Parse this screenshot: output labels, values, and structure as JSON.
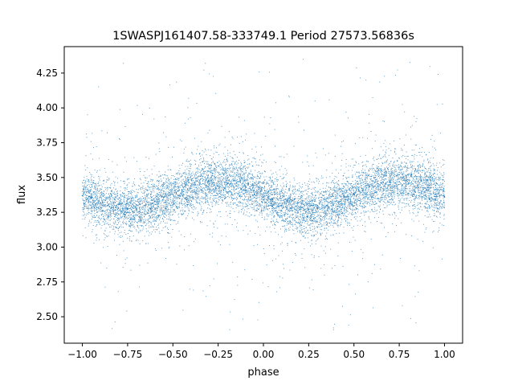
{
  "chart_data": {
    "type": "scatter",
    "title": "1SWASPJ161407.58-333749.1 Period 27573.56836s",
    "xlabel": "phase",
    "ylabel": "flux",
    "xlim": [
      -1.1,
      1.1
    ],
    "ylim": [
      2.31,
      4.44
    ],
    "x_ticks": [
      -1.0,
      -0.75,
      -0.5,
      -0.25,
      0.0,
      0.25,
      0.5,
      0.75,
      1.0
    ],
    "x_tick_labels": [
      "−1.00",
      "−0.75",
      "−0.50",
      "−0.25",
      "0.00",
      "0.25",
      "0.50",
      "0.75",
      "1.00"
    ],
    "y_ticks": [
      2.5,
      2.75,
      3.0,
      3.25,
      3.5,
      3.75,
      4.0,
      4.25
    ],
    "y_tick_labels": [
      "2.50",
      "2.75",
      "3.00",
      "3.25",
      "3.50",
      "3.75",
      "4.00",
      "4.25"
    ],
    "grid": false,
    "point_color": "#1f77b4",
    "series": [
      {
        "phase_range": [
          -1.0,
          1.0
        ],
        "model": {
          "mean_flux": 3.37,
          "amplitude": 0.1,
          "max_phase": [
            -0.25,
            0.75
          ],
          "min_phase": [
            -0.75,
            0.25
          ],
          "scatter_sigma": 0.09,
          "outlier_range": [
            2.4,
            4.35
          ]
        },
        "points": [
          [
            -1.0,
            3.37
          ],
          [
            -0.95,
            3.35
          ],
          [
            -0.9,
            3.32
          ],
          [
            -0.85,
            3.29
          ],
          [
            -0.8,
            3.28
          ],
          [
            -0.75,
            3.27
          ],
          [
            -0.7,
            3.28
          ],
          [
            -0.65,
            3.3
          ],
          [
            -0.6,
            3.33
          ],
          [
            -0.55,
            3.36
          ],
          [
            -0.5,
            3.38
          ],
          [
            -0.45,
            3.41
          ],
          [
            -0.4,
            3.44
          ],
          [
            -0.35,
            3.46
          ],
          [
            -0.3,
            3.47
          ],
          [
            -0.25,
            3.47
          ],
          [
            -0.2,
            3.46
          ],
          [
            -0.15,
            3.44
          ],
          [
            -0.1,
            3.41
          ],
          [
            -0.05,
            3.38
          ],
          [
            0.0,
            3.36
          ],
          [
            0.05,
            3.33
          ],
          [
            0.1,
            3.3
          ],
          [
            0.15,
            3.28
          ],
          [
            0.2,
            3.27
          ],
          [
            0.25,
            3.27
          ],
          [
            0.3,
            3.28
          ],
          [
            0.35,
            3.3
          ],
          [
            0.4,
            3.33
          ],
          [
            0.45,
            3.36
          ],
          [
            0.5,
            3.38
          ],
          [
            0.55,
            3.41
          ],
          [
            0.6,
            3.44
          ],
          [
            0.65,
            3.46
          ],
          [
            0.7,
            3.47
          ],
          [
            0.75,
            3.47
          ],
          [
            0.8,
            3.46
          ],
          [
            0.85,
            3.44
          ],
          [
            0.9,
            3.41
          ],
          [
            0.95,
            3.38
          ],
          [
            1.0,
            3.36
          ]
        ]
      }
    ]
  }
}
